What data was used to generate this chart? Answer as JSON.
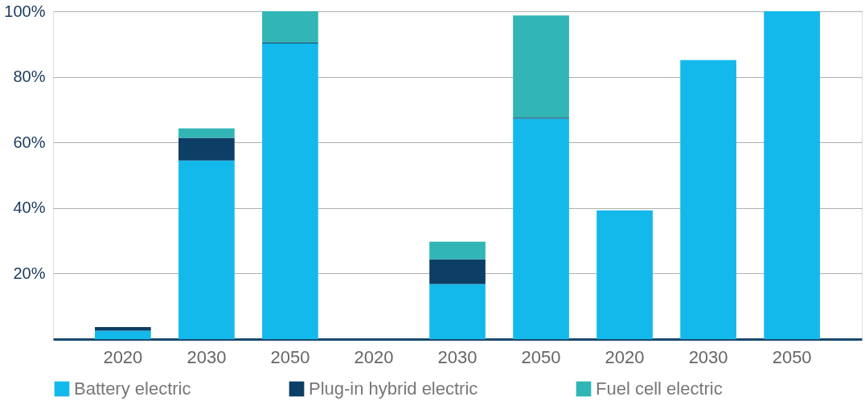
{
  "chart_data": {
    "type": "bar",
    "stacked": true,
    "categories": [
      "2020",
      "2030",
      "2050",
      "2020",
      "2030",
      "2050",
      "2020",
      "2030",
      "2050"
    ],
    "series": [
      {
        "name": "Battery electric",
        "color": "#14b9ec",
        "values": [
          2.6,
          54.5,
          90.2,
          0,
          16.8,
          67.3,
          39.3,
          85.1,
          100
        ]
      },
      {
        "name": "Plug-in hybrid electric",
        "color": "#0c3e66",
        "values": [
          1.1,
          6.9,
          0.3,
          0,
          7.5,
          0.3,
          0,
          0,
          0
        ]
      },
      {
        "name": "Fuel cell electric",
        "color": "#31b5b5",
        "values": [
          0,
          2.9,
          9.5,
          0,
          5.4,
          31.1,
          0,
          0,
          0
        ]
      }
    ],
    "ylim": [
      0,
      100
    ],
    "yticks": [
      {
        "value": 20,
        "label": "20%"
      },
      {
        "value": 40,
        "label": "40%"
      },
      {
        "value": 60,
        "label": "60%"
      },
      {
        "value": 80,
        "label": "80%"
      },
      {
        "value": 100,
        "label": "100%"
      }
    ],
    "grid": "y",
    "legend": "bottom"
  }
}
